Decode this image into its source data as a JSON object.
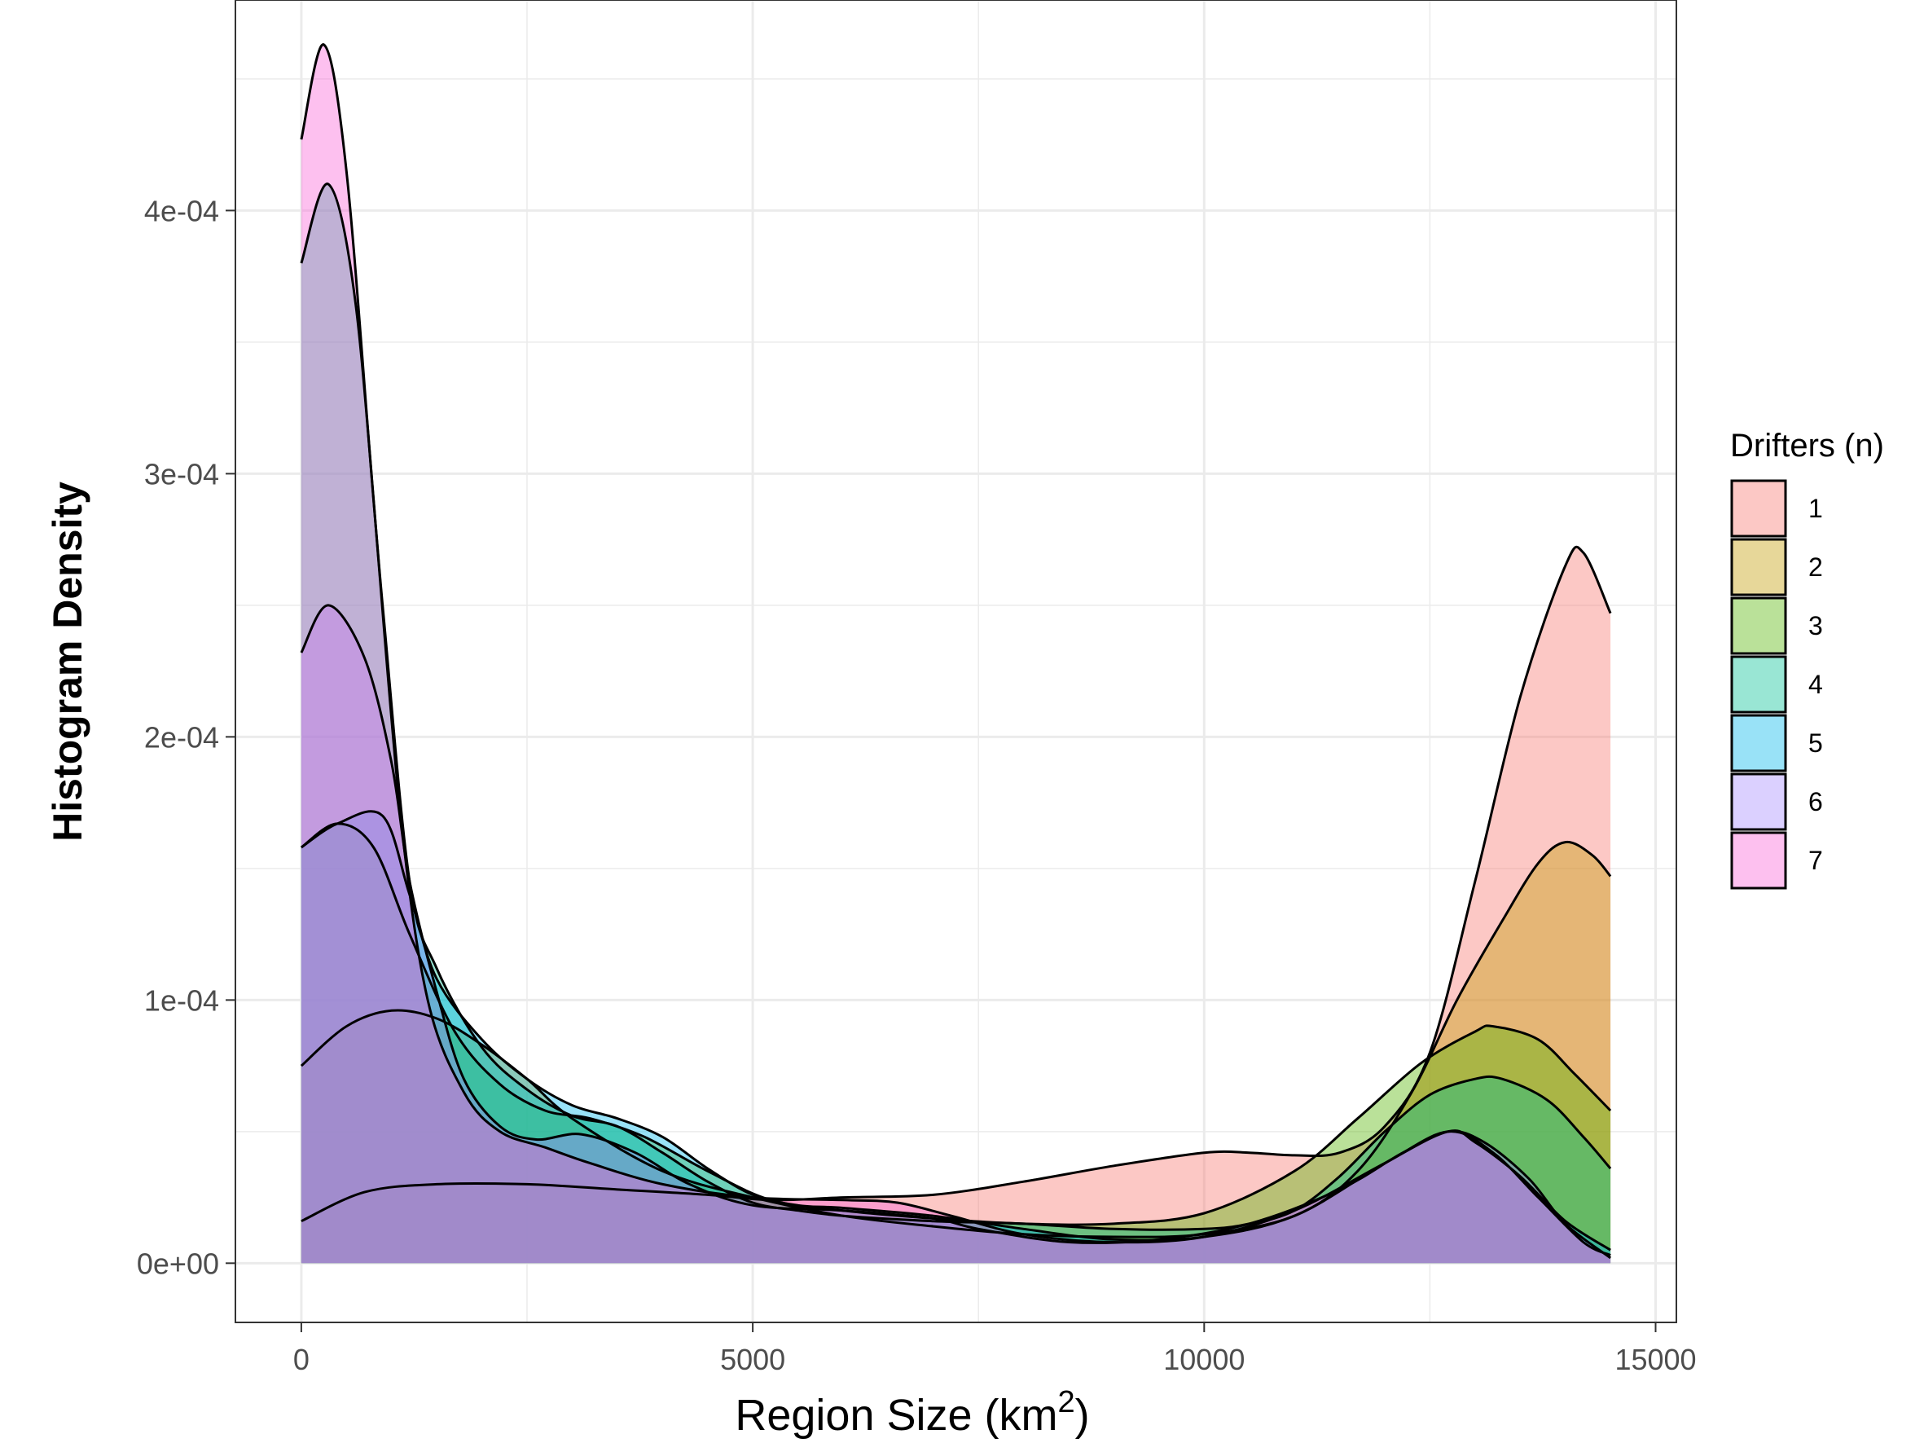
{
  "chart_data": {
    "type": "area",
    "title": "",
    "xlabel": "Region Size  (km",
    "xlabel_superscript": "2",
    "xlabel_suffix": ")",
    "ylabel": "Histogram Density",
    "xlim": [
      -730,
      15230
    ],
    "ylim": [
      -2.25e-05,
      0.00048
    ],
    "x_ticks": [
      0,
      5000,
      10000,
      15000
    ],
    "x_tick_labels": [
      "0",
      "5000",
      "10000",
      "15000"
    ],
    "y_ticks": [
      0,
      0.0001,
      0.0002,
      0.0003,
      0.0004
    ],
    "y_tick_labels": [
      "0e+00",
      "1e-04",
      "2e-04",
      "3e-04",
      "4e-04"
    ],
    "grid": true,
    "legend": {
      "title": "Drifters (n)",
      "position": "right"
    },
    "series": [
      {
        "name": "1",
        "color": "#F8766D",
        "points": [
          [
            0,
            1.6e-05
          ],
          [
            700,
            2.7e-05
          ],
          [
            1500,
            3e-05
          ],
          [
            2500,
            3e-05
          ],
          [
            3500,
            2.8e-05
          ],
          [
            4500,
            2.6e-05
          ],
          [
            5200,
            2.4e-05
          ],
          [
            6000,
            2.5e-05
          ],
          [
            7000,
            2.6e-05
          ],
          [
            8000,
            3.1e-05
          ],
          [
            9000,
            3.7e-05
          ],
          [
            10000,
            4.2e-05
          ],
          [
            10500,
            4.2e-05
          ],
          [
            11000,
            4.1e-05
          ],
          [
            11500,
            4.2e-05
          ],
          [
            12000,
            5.2e-05
          ],
          [
            12500,
            8e-05
          ],
          [
            13000,
            0.000145
          ],
          [
            13500,
            0.000215
          ],
          [
            14000,
            0.000265
          ],
          [
            14200,
            0.00027
          ],
          [
            14500,
            0.000247
          ]
        ]
      },
      {
        "name": "2",
        "color": "#C49A00",
        "points": [
          [
            0,
            7.5e-05
          ],
          [
            500,
            9e-05
          ],
          [
            1000,
            9.6e-05
          ],
          [
            1500,
            9.3e-05
          ],
          [
            2000,
            8.3e-05
          ],
          [
            2500,
            7e-05
          ],
          [
            3000,
            5.5e-05
          ],
          [
            4000,
            3.5e-05
          ],
          [
            5000,
            2.5e-05
          ],
          [
            6000,
            1.8e-05
          ],
          [
            7000,
            1.4e-05
          ],
          [
            8000,
            1.1e-05
          ],
          [
            9000,
            1e-05
          ],
          [
            10000,
            1.1e-05
          ],
          [
            11000,
            1.8e-05
          ],
          [
            11700,
            3.5e-05
          ],
          [
            12300,
            6.5e-05
          ],
          [
            12800,
            0.0001
          ],
          [
            13300,
            0.00013
          ],
          [
            13700,
            0.000152
          ],
          [
            14000,
            0.00016
          ],
          [
            14300,
            0.000155
          ],
          [
            14500,
            0.000147
          ]
        ]
      },
      {
        "name": "3",
        "color": "#53B400",
        "points": [
          [
            0,
            0.000158
          ],
          [
            400,
            0.000167
          ],
          [
            800,
            0.000158
          ],
          [
            1200,
            0.000125
          ],
          [
            1700,
            8.8e-05
          ],
          [
            2200,
            6.8e-05
          ],
          [
            2700,
            5.8e-05
          ],
          [
            3200,
            5.5e-05
          ],
          [
            3800,
            4.8e-05
          ],
          [
            4500,
            3.5e-05
          ],
          [
            5200,
            2.4e-05
          ],
          [
            6000,
            2e-05
          ],
          [
            7000,
            1.7e-05
          ],
          [
            8000,
            1.5e-05
          ],
          [
            9000,
            1.5e-05
          ],
          [
            10000,
            1.9e-05
          ],
          [
            11000,
            3.5e-05
          ],
          [
            11700,
            5.5e-05
          ],
          [
            12400,
            7.6e-05
          ],
          [
            13000,
            8.8e-05
          ],
          [
            13200,
            9e-05
          ],
          [
            13700,
            8.5e-05
          ],
          [
            14100,
            7.2e-05
          ],
          [
            14500,
            5.8e-05
          ]
        ]
      },
      {
        "name": "4",
        "color": "#00C094",
        "points": [
          [
            0,
            0.00038
          ],
          [
            300,
            0.00041
          ],
          [
            600,
            0.000365
          ],
          [
            900,
            0.00025
          ],
          [
            1200,
            0.000145
          ],
          [
            1500,
            0.000112
          ],
          [
            2000,
            8.2e-05
          ],
          [
            2500,
            6.6e-05
          ],
          [
            3000,
            5.6e-05
          ],
          [
            3500,
            5.2e-05
          ],
          [
            4000,
            4.2e-05
          ],
          [
            4500,
            3.1e-05
          ],
          [
            5000,
            2.3e-05
          ],
          [
            5500,
            2e-05
          ],
          [
            6000,
            1.8e-05
          ],
          [
            7000,
            1.6e-05
          ],
          [
            8000,
            1.5e-05
          ],
          [
            9000,
            1.3e-05
          ],
          [
            10000,
            1.3e-05
          ],
          [
            10500,
            1.5e-05
          ],
          [
            11000,
            2e-05
          ],
          [
            11500,
            3.3e-05
          ],
          [
            12000,
            5e-05
          ],
          [
            12500,
            6.4e-05
          ],
          [
            13000,
            7e-05
          ],
          [
            13300,
            7e-05
          ],
          [
            13800,
            6.2e-05
          ],
          [
            14200,
            4.8e-05
          ],
          [
            14500,
            3.6e-05
          ]
        ]
      },
      {
        "name": "5",
        "color": "#00B6EB",
        "points": [
          [
            0,
            0.000158
          ],
          [
            400,
            0.000167
          ],
          [
            900,
            0.00017
          ],
          [
            1200,
            0.00014
          ],
          [
            1500,
            0.000108
          ],
          [
            2000,
            8.5e-05
          ],
          [
            2500,
            7e-05
          ],
          [
            3000,
            6e-05
          ],
          [
            3500,
            5.5e-05
          ],
          [
            4000,
            4.8e-05
          ],
          [
            4500,
            3.6e-05
          ],
          [
            5000,
            2.6e-05
          ],
          [
            5500,
            2.2e-05
          ],
          [
            6000,
            2.1e-05
          ],
          [
            7000,
            1.8e-05
          ],
          [
            8000,
            1.3e-05
          ],
          [
            9000,
            9e-06
          ],
          [
            10000,
            1e-05
          ],
          [
            11000,
            1.8e-05
          ],
          [
            12000,
            3.8e-05
          ],
          [
            12700,
            5e-05
          ],
          [
            13000,
            4.6e-05
          ],
          [
            13500,
            3.3e-05
          ],
          [
            14000,
            1.6e-05
          ],
          [
            14500,
            5e-06
          ]
        ]
      },
      {
        "name": "6",
        "color": "#A58AFF",
        "points": [
          [
            0,
            0.000232
          ],
          [
            300,
            0.00025
          ],
          [
            700,
            0.00023
          ],
          [
            1000,
            0.00019
          ],
          [
            1200,
            0.000145
          ],
          [
            1500,
            0.000103
          ],
          [
            1800,
            7e-05
          ],
          [
            2200,
            5.2e-05
          ],
          [
            2600,
            4.7e-05
          ],
          [
            3100,
            4.9e-05
          ],
          [
            3700,
            4.2e-05
          ],
          [
            4300,
            3e-05
          ],
          [
            5000,
            2.2e-05
          ],
          [
            6000,
            2e-05
          ],
          [
            7000,
            1.7e-05
          ],
          [
            7500,
            1.3e-05
          ],
          [
            8500,
            8e-06
          ],
          [
            9500,
            9e-06
          ],
          [
            10500,
            1.5e-05
          ],
          [
            11500,
            2.8e-05
          ],
          [
            12200,
            4.2e-05
          ],
          [
            12700,
            5e-05
          ],
          [
            13100,
            4.6e-05
          ],
          [
            13600,
            3.2e-05
          ],
          [
            14000,
            1.5e-05
          ],
          [
            14500,
            2e-06
          ]
        ]
      },
      {
        "name": "7",
        "color": "#FB61D7",
        "points": [
          [
            0,
            0.000427
          ],
          [
            250,
            0.000463
          ],
          [
            500,
            0.000415
          ],
          [
            800,
            0.00029
          ],
          [
            1100,
            0.00017
          ],
          [
            1400,
            0.0001
          ],
          [
            1800,
            6.5e-05
          ],
          [
            2200,
            5e-05
          ],
          [
            2700,
            4.4e-05
          ],
          [
            3200,
            3.8e-05
          ],
          [
            4000,
            3e-05
          ],
          [
            5000,
            2.5e-05
          ],
          [
            6000,
            2.4e-05
          ],
          [
            6600,
            2.3e-05
          ],
          [
            7200,
            1.8e-05
          ],
          [
            8000,
            1.1e-05
          ],
          [
            9000,
            8e-06
          ],
          [
            10000,
            1e-05
          ],
          [
            11000,
            2e-05
          ],
          [
            12000,
            3.8e-05
          ],
          [
            12700,
            5e-05
          ],
          [
            13200,
            4.2e-05
          ],
          [
            13700,
            2.5e-05
          ],
          [
            14200,
            8e-06
          ],
          [
            14500,
            3e-06
          ]
        ]
      }
    ]
  }
}
